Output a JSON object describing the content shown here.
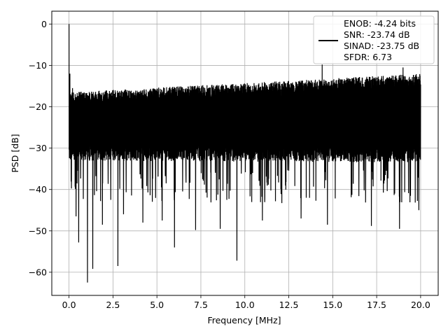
{
  "chart_data": {
    "type": "line",
    "title": "",
    "xlabel": "Frequency [MHz]",
    "ylabel": "PSD [dB]",
    "xlim": [
      -0.98,
      21.0
    ],
    "ylim": [
      -65.6,
      3.1
    ],
    "xticks": [
      0.0,
      2.5,
      5.0,
      7.5,
      10.0,
      12.5,
      15.0,
      17.5,
      20.0
    ],
    "xtick_labels": [
      "0.0",
      "2.5",
      "5.0",
      "7.5",
      "10.0",
      "12.5",
      "15.0",
      "17.5",
      "20.0"
    ],
    "yticks": [
      0,
      -10,
      -20,
      -30,
      -40,
      -50,
      -60
    ],
    "ytick_labels": [
      "0",
      "−10",
      "−20",
      "−30",
      "−40",
      "−50",
      "−60"
    ],
    "grid": true,
    "legend_position": "top-right",
    "legend_lines": [
      "ENOB: -4.24 bits",
      "SNR: -23.74 dB",
      "SINAD: -23.75 dB",
      "SFDR: 6.73"
    ],
    "series": [
      {
        "color": "#000000",
        "x_range": [
          0.0,
          20.0
        ],
        "noise_band": {
          "x": [
            0.0,
            20.0
          ],
          "upper": [
            -16.5,
            -12.0
          ],
          "lower": [
            -33.0,
            -33.5
          ]
        },
        "peaks": [
          {
            "x": 0.0,
            "y": 0.0
          },
          {
            "x": 0.05,
            "y": -12.0
          },
          {
            "x": 0.2,
            "y": -15.5
          },
          {
            "x": 14.4,
            "y": -9.8
          },
          {
            "x": 19.0,
            "y": -10.5
          }
        ],
        "dips": [
          {
            "x": 0.55,
            "y": -52.8
          },
          {
            "x": 1.05,
            "y": -62.5
          },
          {
            "x": 1.35,
            "y": -59.2
          },
          {
            "x": 2.78,
            "y": -58.5
          },
          {
            "x": 6.0,
            "y": -54.0
          },
          {
            "x": 9.55,
            "y": -57.2
          },
          {
            "x": 0.4,
            "y": -46.5
          },
          {
            "x": 1.9,
            "y": -48.5
          },
          {
            "x": 3.1,
            "y": -46.0
          },
          {
            "x": 4.2,
            "y": -48.0
          },
          {
            "x": 5.3,
            "y": -47.5
          },
          {
            "x": 7.2,
            "y": -49.8
          },
          {
            "x": 8.6,
            "y": -49.5
          },
          {
            "x": 11.0,
            "y": -47.5
          },
          {
            "x": 13.2,
            "y": -47.0
          },
          {
            "x": 14.7,
            "y": -48.5
          },
          {
            "x": 17.2,
            "y": -48.8
          },
          {
            "x": 18.8,
            "y": -49.5
          },
          {
            "x": 19.9,
            "y": -45.0
          }
        ]
      }
    ]
  }
}
